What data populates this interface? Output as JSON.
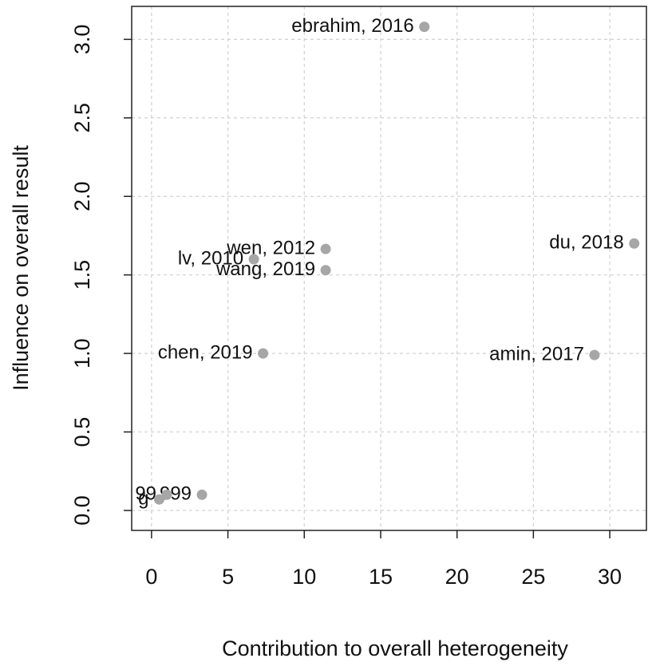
{
  "chart_data": {
    "type": "scatter",
    "xlabel": "Contribution to overall heterogeneity",
    "ylabel": "Influence on overall result",
    "x": [
      17.86,
      31.6,
      29.0,
      11.4,
      6.7,
      11.4,
      7.3,
      3.3,
      1.0,
      0.5
    ],
    "values": [
      3.08,
      1.7,
      0.99,
      1.665,
      1.6,
      1.53,
      1.0,
      0.1,
      0.1,
      0.07
    ],
    "labels": [
      "ebrahim, 2016",
      "du, 2018",
      "amin, 2017",
      "wen, 2012",
      "lv, 2010",
      "wang, 2019",
      "chen, 2019",
      "999",
      "99",
      "g"
    ],
    "color": "#a6a6a6",
    "xlim": [
      -1.3,
      32.4
    ],
    "ylim": [
      -0.127,
      3.21
    ],
    "xticks": [
      0,
      5,
      10,
      15,
      20,
      25,
      30
    ],
    "yticks": [
      {
        "value": 0,
        "label": "0.0"
      },
      {
        "value": 0.5,
        "label": "0.5"
      },
      {
        "value": 1,
        "label": "1.0"
      },
      {
        "value": 1.5,
        "label": "1.5"
      },
      {
        "value": 2,
        "label": "2.0"
      },
      {
        "value": 2.5,
        "label": "2.5"
      },
      {
        "value": 3,
        "label": "3.0"
      }
    ],
    "grid": true
  }
}
